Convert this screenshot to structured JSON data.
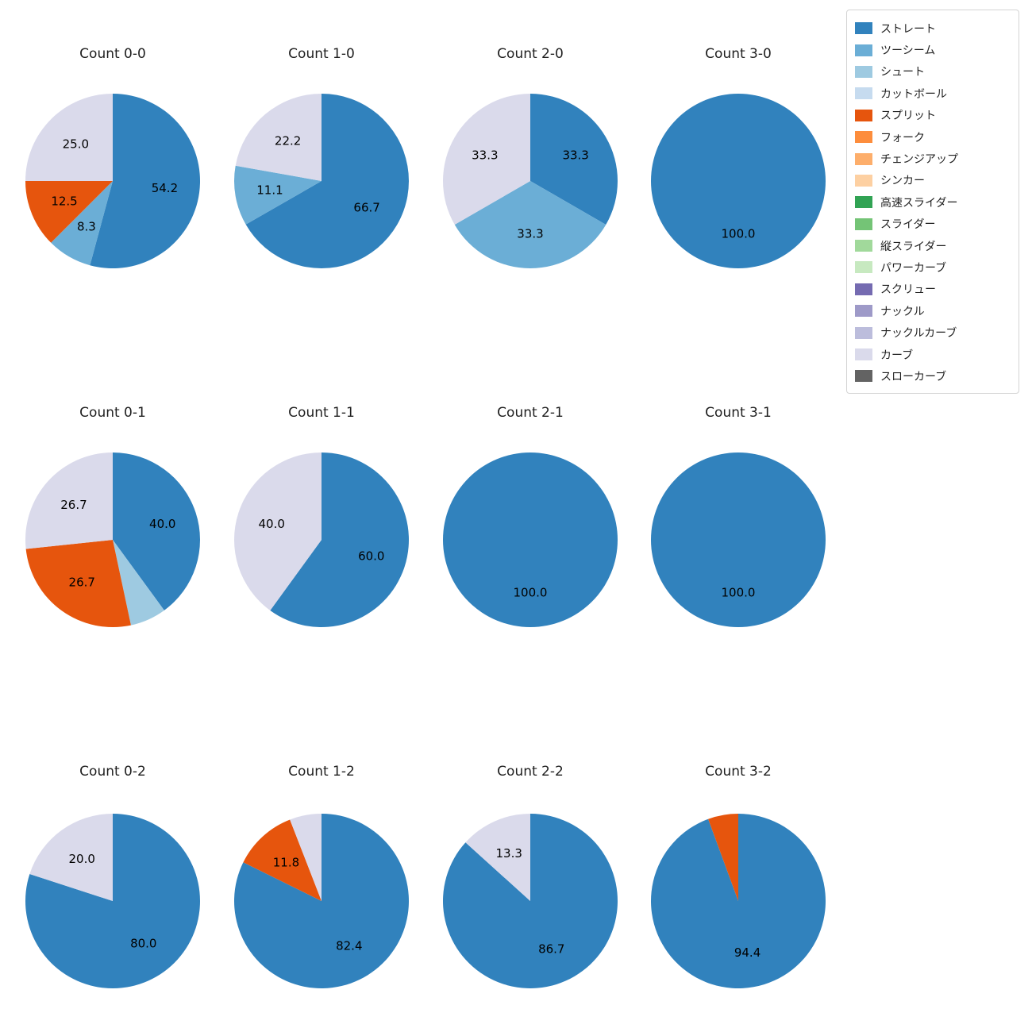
{
  "figure": {
    "background": "#ffffff",
    "text_color": "#1f1f1f",
    "pct_label_color": "#000000"
  },
  "chart_data": {
    "type": "pie",
    "grid": {
      "rows": 3,
      "cols": 4
    },
    "direction": "clockwise",
    "start_angle_deg": 0,
    "pct_label_distance": 0.6,
    "legend_position": "upper right",
    "palette": {
      "ストレート": "#3182bd",
      "ツーシーム": "#6baed6",
      "シュート": "#9ecae1",
      "カットボール": "#c6dbef",
      "スプリット": "#e6550d",
      "フォーク": "#fd8d3c",
      "チェンジアップ": "#fdae6b",
      "シンカー": "#fdd0a2",
      "高速スライダー": "#31a354",
      "スライダー": "#74c476",
      "縦スライダー": "#a1d99b",
      "パワーカーブ": "#c7e9c0",
      "スクリュー": "#756bb1",
      "ナックル": "#9e9ac8",
      "ナックルカーブ": "#bcbddc",
      "カーブ": "#dadaeb",
      "スローカーブ": "#636363"
    },
    "legend_items": [
      "ストレート",
      "ツーシーム",
      "シュート",
      "カットボール",
      "スプリット",
      "フォーク",
      "チェンジアップ",
      "シンカー",
      "高速スライダー",
      "スライダー",
      "縦スライダー",
      "パワーカーブ",
      "スクリュー",
      "ナックル",
      "ナックルカーブ",
      "カーブ",
      "スローカーブ"
    ],
    "subplots": [
      {
        "title": "Count 0-0",
        "slices": [
          {
            "name": "ストレート",
            "value": 54.2,
            "label": "54.2"
          },
          {
            "name": "ツーシーム",
            "value": 8.3,
            "label": "8.3"
          },
          {
            "name": "スプリット",
            "value": 12.5,
            "label": "12.5"
          },
          {
            "name": "カーブ",
            "value": 25.0,
            "label": "25.0"
          }
        ]
      },
      {
        "title": "Count 1-0",
        "slices": [
          {
            "name": "ストレート",
            "value": 66.7,
            "label": "66.7"
          },
          {
            "name": "ツーシーム",
            "value": 11.1,
            "label": "11.1"
          },
          {
            "name": "カーブ",
            "value": 22.2,
            "label": "22.2"
          }
        ]
      },
      {
        "title": "Count 2-0",
        "slices": [
          {
            "name": "ストレート",
            "value": 33.3,
            "label": "33.3"
          },
          {
            "name": "ツーシーム",
            "value": 33.3,
            "label": "33.3"
          },
          {
            "name": "カーブ",
            "value": 33.3,
            "label": "33.3"
          }
        ]
      },
      {
        "title": "Count 3-0",
        "slices": [
          {
            "name": "ストレート",
            "value": 100.0,
            "label": "100.0"
          }
        ]
      },
      {
        "title": "Count 0-1",
        "slices": [
          {
            "name": "ストレート",
            "value": 40.0,
            "label": "40.0"
          },
          {
            "name": "シュート",
            "value": 6.7,
            "label": null
          },
          {
            "name": "スプリット",
            "value": 26.7,
            "label": "26.7"
          },
          {
            "name": "カーブ",
            "value": 26.7,
            "label": "26.7"
          }
        ]
      },
      {
        "title": "Count 1-1",
        "slices": [
          {
            "name": "ストレート",
            "value": 60.0,
            "label": "60.0"
          },
          {
            "name": "カーブ",
            "value": 40.0,
            "label": "40.0"
          }
        ]
      },
      {
        "title": "Count 2-1",
        "slices": [
          {
            "name": "ストレート",
            "value": 100.0,
            "label": "100.0"
          }
        ]
      },
      {
        "title": "Count 3-1",
        "slices": [
          {
            "name": "ストレート",
            "value": 100.0,
            "label": "100.0"
          }
        ]
      },
      {
        "title": "Count 0-2",
        "slices": [
          {
            "name": "ストレート",
            "value": 80.0,
            "label": "80.0"
          },
          {
            "name": "カーブ",
            "value": 20.0,
            "label": "20.0"
          }
        ]
      },
      {
        "title": "Count 1-2",
        "slices": [
          {
            "name": "ストレート",
            "value": 82.4,
            "label": "82.4"
          },
          {
            "name": "スプリット",
            "value": 11.8,
            "label": "11.8"
          },
          {
            "name": "カーブ",
            "value": 5.9,
            "label": null
          }
        ]
      },
      {
        "title": "Count 2-2",
        "slices": [
          {
            "name": "ストレート",
            "value": 86.7,
            "label": "86.7"
          },
          {
            "name": "カーブ",
            "value": 13.3,
            "label": "13.3"
          }
        ]
      },
      {
        "title": "Count 3-2",
        "slices": [
          {
            "name": "ストレート",
            "value": 94.4,
            "label": "94.4"
          },
          {
            "name": "スプリット",
            "value": 5.6,
            "label": null
          }
        ]
      }
    ]
  }
}
